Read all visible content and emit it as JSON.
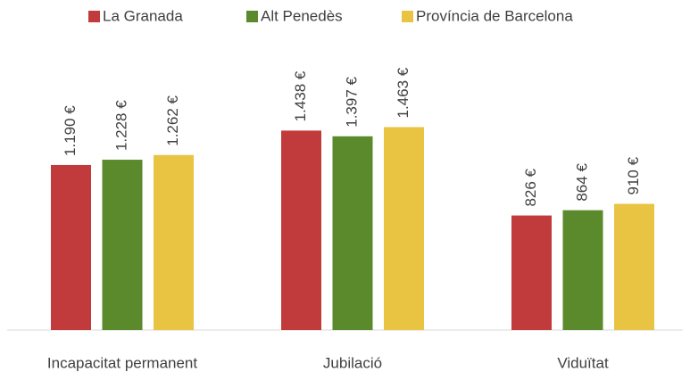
{
  "chart_data": {
    "type": "bar",
    "categories": [
      "Incapacitat permanent",
      "Jubilació",
      "Viduïtat"
    ],
    "series": [
      {
        "name": "La Granada",
        "color": "#c13b3d",
        "values": [
          1190,
          1438,
          826
        ],
        "value_labels": [
          "1.190 €",
          "1.438 €",
          "826 €"
        ]
      },
      {
        "name": "Alt Penedès",
        "color": "#5a8a2b",
        "values": [
          1228,
          1397,
          864
        ],
        "value_labels": [
          "1.228 €",
          "1.397 €",
          "864 €"
        ]
      },
      {
        "name": "Província de Barcelona",
        "color": "#e8c442",
        "values": [
          1262,
          1463,
          910
        ],
        "value_labels": [
          "1.262 €",
          "1.463 €",
          "910 €"
        ]
      }
    ],
    "ylim": [
      0,
      2000
    ],
    "legend": "top"
  }
}
